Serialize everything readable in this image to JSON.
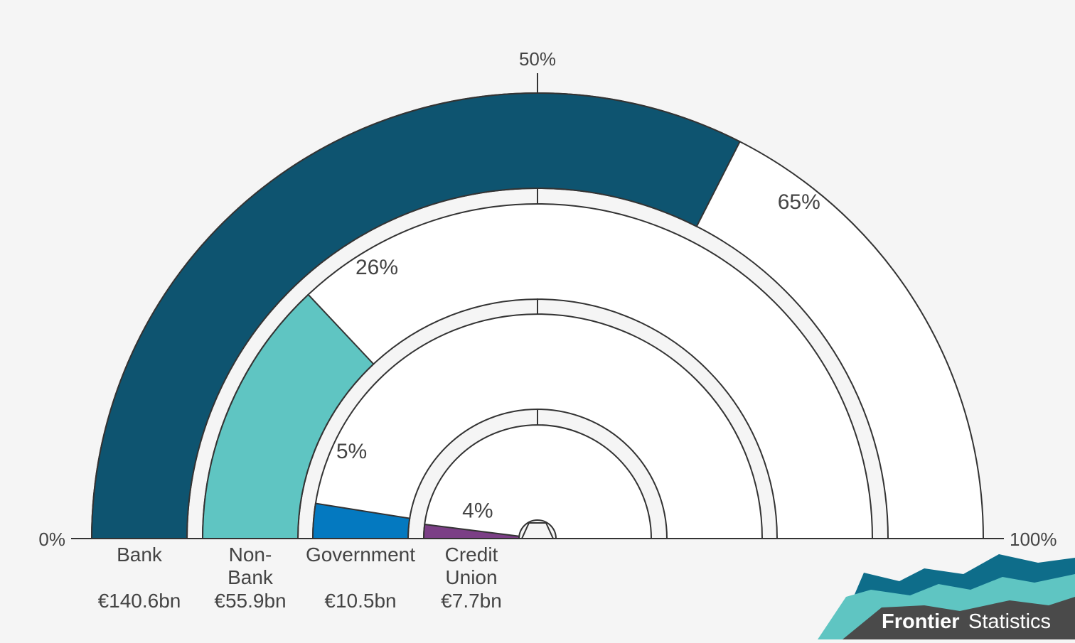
{
  "chart_data": {
    "type": "radial-bar",
    "axis": {
      "min": 0,
      "max": 100,
      "ticks": [
        "0%",
        "50%",
        "100%"
      ]
    },
    "series": [
      {
        "category": [
          "Bank"
        ],
        "value": 65,
        "value_label": "65%",
        "amount": "€140.6bn",
        "color": "#0e5470"
      },
      {
        "category": [
          "Non-",
          "Bank"
        ],
        "value": 26,
        "value_label": "26%",
        "amount": "€55.9bn",
        "color": "#5fc5c2"
      },
      {
        "category": [
          "Government"
        ],
        "value": 5,
        "value_label": "5%",
        "amount": "€10.5bn",
        "color": "#0479c0"
      },
      {
        "category": [
          "Credit",
          "Union"
        ],
        "value": 4,
        "value_label": "4%",
        "amount": "€7.7bn",
        "color": "#7b3f86"
      }
    ]
  },
  "branding": {
    "name_bold": "Frontier",
    "name_regular": "Statistics",
    "colors": [
      "#0e6d8a",
      "#5fc5c2",
      "#4a4a4a"
    ]
  }
}
